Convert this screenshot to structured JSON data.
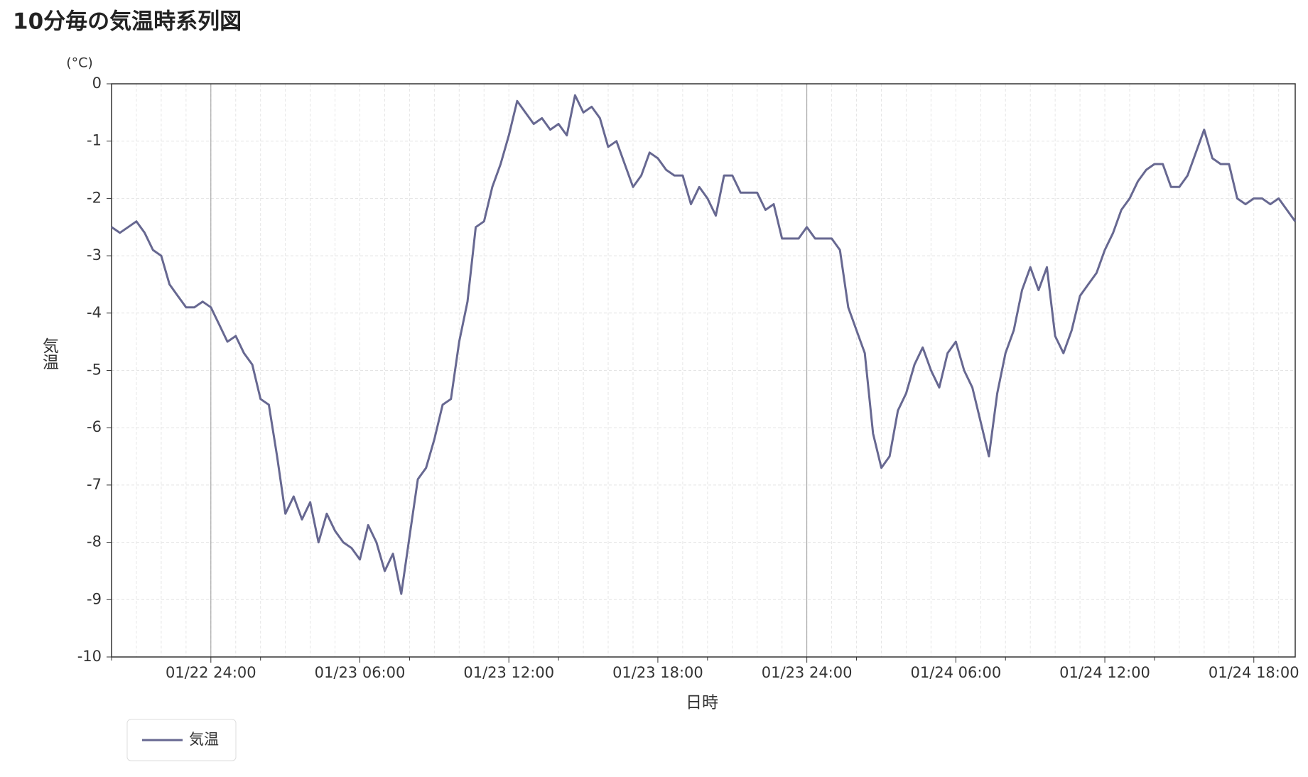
{
  "chart_data": {
    "type": "line",
    "title": "10分毎の気温時系列図",
    "y_unit": "(°C)",
    "y_label": "気温",
    "x_label": "日時",
    "categories": [
      null,
      null,
      null,
      null,
      null,
      null,
      null,
      null,
      null,
      null,
      null,
      null,
      "01/22 24:00",
      null,
      null,
      null,
      null,
      null,
      null,
      null,
      null,
      null,
      null,
      null,
      null,
      null,
      null,
      null,
      null,
      null,
      "01/23 06:00",
      null,
      null,
      null,
      null,
      null,
      null,
      null,
      null,
      null,
      null,
      null,
      null,
      null,
      null,
      null,
      null,
      null,
      "01/23 12:00",
      null,
      null,
      null,
      null,
      null,
      null,
      null,
      null,
      null,
      null,
      null,
      null,
      null,
      null,
      null,
      null,
      null,
      "01/23 18:00",
      null,
      null,
      null,
      null,
      null,
      null,
      null,
      null,
      null,
      null,
      null,
      null,
      null,
      null,
      null,
      null,
      null,
      "01/23 24:00",
      null,
      null,
      null,
      null,
      null,
      null,
      null,
      null,
      null,
      null,
      null,
      null,
      null,
      null,
      null,
      null,
      null,
      "01/24 06:00",
      null,
      null,
      null,
      null,
      null,
      null,
      null,
      null,
      null,
      null,
      null,
      null,
      null,
      null,
      null,
      null,
      null,
      "01/24 12:00",
      null,
      null,
      null,
      null,
      null,
      null,
      null,
      null,
      null,
      null,
      null,
      null,
      null,
      null,
      null,
      null,
      null,
      "01/24 18:00",
      null,
      null,
      null,
      null,
      null
    ],
    "series": [
      {
        "name": "気温",
        "color": "#676891",
        "values": [
          -2.5,
          -2.6,
          -2.5,
          -2.4,
          -2.6,
          -2.9,
          -3.0,
          -3.5,
          -3.7,
          -3.9,
          -3.9,
          -3.8,
          -3.9,
          -4.2,
          -4.5,
          -4.4,
          -4.7,
          -4.9,
          -5.5,
          -5.6,
          -6.5,
          -7.5,
          -7.2,
          -7.6,
          -7.3,
          -8.0,
          -7.5,
          -7.8,
          -8.0,
          -8.1,
          -8.3,
          -7.7,
          -8.0,
          -8.5,
          -8.2,
          -8.9,
          -7.9,
          -6.9,
          -6.7,
          -6.2,
          -5.6,
          -5.5,
          -4.5,
          -3.8,
          -2.5,
          -2.4,
          -1.8,
          -1.4,
          -0.9,
          -0.3,
          -0.5,
          -0.7,
          -0.6,
          -0.8,
          -0.7,
          -0.9,
          -0.2,
          -0.5,
          -0.4,
          -0.6,
          -1.1,
          -1.0,
          -1.4,
          -1.8,
          -1.6,
          -1.2,
          -1.3,
          -1.5,
          -1.6,
          -1.6,
          -2.1,
          -1.8,
          -2.0,
          -2.3,
          -1.6,
          -1.6,
          -1.9,
          -1.9,
          -1.9,
          -2.2,
          -2.1,
          -2.7,
          -2.7,
          -2.7,
          -2.5,
          -2.7,
          -2.7,
          -2.7,
          -2.9,
          -3.9,
          -4.3,
          -4.7,
          -6.1,
          -6.7,
          -6.5,
          -5.7,
          -5.4,
          -4.9,
          -4.6,
          -5.0,
          -5.3,
          -4.7,
          -4.5,
          -5.0,
          -5.3,
          -5.9,
          -6.5,
          -5.4,
          -4.7,
          -4.3,
          -3.6,
          -3.2,
          -3.6,
          -3.2,
          -4.4,
          -4.7,
          -4.3,
          -3.7,
          -3.5,
          -3.3,
          -2.9,
          -2.6,
          -2.2,
          -2.0,
          -1.7,
          -1.5,
          -1.4,
          -1.4,
          -1.8,
          -1.8,
          -1.6,
          -1.2,
          -0.8,
          -1.3,
          -1.4,
          -1.4,
          -2.0,
          -2.1,
          -2.0,
          -2.0,
          -2.1,
          -2.0,
          -2.2,
          -2.4
        ]
      }
    ],
    "ylim": [
      -10,
      0
    ],
    "yticks": [
      0,
      -1,
      -2,
      -3,
      -4,
      -5,
      -6,
      -7,
      -8,
      -9,
      -10
    ],
    "grid": true
  }
}
